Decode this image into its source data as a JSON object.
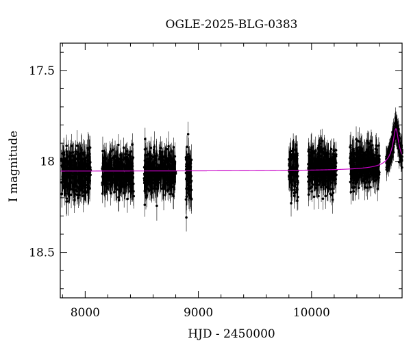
{
  "chart_data": {
    "type": "scatter",
    "title": "OGLE-2025-BLG-0383",
    "xlabel": "HJD - 2450000",
    "ylabel": "I magnitude",
    "xlim": [
      7780,
      10800
    ],
    "ylim": [
      18.75,
      17.35
    ],
    "y_inverted": true,
    "x_ticks": [
      8000,
      9000,
      10000
    ],
    "y_ticks": [
      17.5,
      18,
      18.5
    ],
    "grid": false,
    "legend": "none",
    "colors": {
      "points": "#000000",
      "errorbars": "#000000",
      "model": "#c800c8"
    },
    "series": [
      {
        "kind": "points-with-errorbars",
        "seasons": [
          {
            "x_range": [
              7790,
              8050
            ],
            "mag_center": 18.06,
            "mag_scatter": 0.06,
            "error": 0.07
          },
          {
            "x_range": [
              8150,
              8430
            ],
            "mag_center": 18.06,
            "mag_scatter": 0.055,
            "error": 0.065
          },
          {
            "x_range": [
              8520,
              8800
            ],
            "mag_center": 18.06,
            "mag_scatter": 0.055,
            "error": 0.065
          },
          {
            "x_range": [
              8890,
              8940
            ],
            "mag_center": 18.07,
            "mag_scatter": 0.07,
            "error": 0.07
          },
          {
            "x_range": [
              9800,
              9880
            ],
            "mag_center": 18.04,
            "mag_scatter": 0.07,
            "error": 0.07
          },
          {
            "x_range": [
              9970,
              10220
            ],
            "mag_center": 18.04,
            "mag_scatter": 0.06,
            "error": 0.065
          },
          {
            "x_range": [
              10340,
              10600
            ],
            "mag_center": 18.02,
            "mag_scatter": 0.05,
            "error": 0.06
          },
          {
            "x_range": [
              10660,
              10800
            ],
            "mag_center": 17.95,
            "mag_scatter": 0.05,
            "error": 0.05
          }
        ]
      },
      {
        "kind": "model-curve",
        "baseline": 18.055,
        "peak_x": 10745,
        "peak_mag": 17.82,
        "width": 40
      }
    ]
  }
}
